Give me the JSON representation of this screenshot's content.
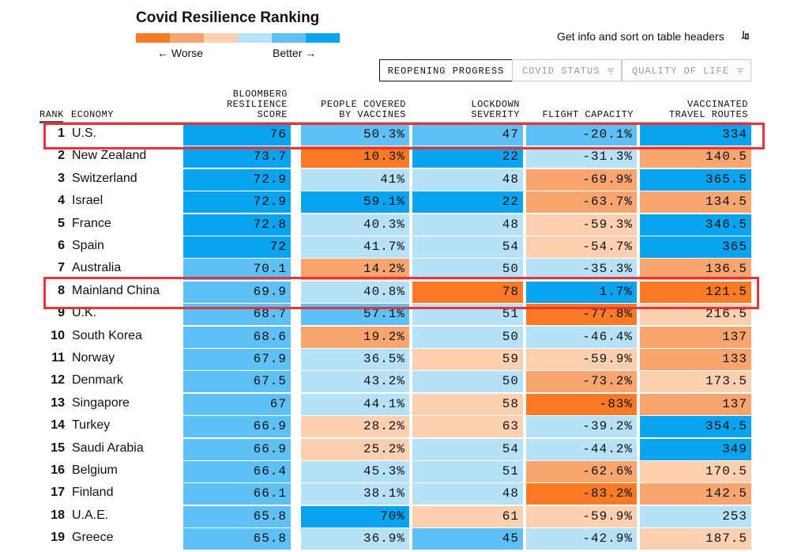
{
  "header": {
    "title": "Covid Resilience Ranking",
    "legend": {
      "colors": [
        "#fa7a26",
        "#f9a570",
        "#fdd0b2",
        "#b6e1f7",
        "#5ec0f4",
        "#0aa3f0"
      ],
      "worse": "← Worse",
      "better": "Better →"
    },
    "info": "Get info and sort on table headers"
  },
  "tabs": [
    {
      "label": "REOPENING PROGRESS",
      "active": true
    },
    {
      "label": "COVID STATUS",
      "active": false
    },
    {
      "label": "QUALITY OF LIFE",
      "active": false
    }
  ],
  "table": {
    "columns": [
      "RANK",
      "ECONOMY",
      "BLOOMBERG\nRESILIENCE\nSCORE",
      "PEOPLE COVERED\nBY VACCINES",
      "LOCKDOWN\nSEVERITY",
      "FLIGHT CAPACITY",
      "VACCINATED\nTRAVEL ROUTES"
    ],
    "rows": [
      {
        "rank": "1",
        "economy": "U.S.",
        "cells": [
          {
            "text": "76",
            "color": "#0aa3f0"
          },
          {
            "text": "50.3%",
            "color": "#5ec0f4"
          },
          {
            "text": "47",
            "color": "#5ec0f4"
          },
          {
            "text": "-20.1%",
            "color": "#5ec0f4"
          },
          {
            "text": "334",
            "color": "#0aa3f0"
          }
        ]
      },
      {
        "rank": "2",
        "economy": "New Zealand",
        "cells": [
          {
            "text": "73.7",
            "color": "#0aa3f0"
          },
          {
            "text": "10.3%",
            "color": "#fa7a26"
          },
          {
            "text": "22",
            "color": "#0aa3f0"
          },
          {
            "text": "-31.3%",
            "color": "#b6e1f7"
          },
          {
            "text": "140.5",
            "color": "#f9a570"
          }
        ]
      },
      {
        "rank": "3",
        "economy": "Switzerland",
        "cells": [
          {
            "text": "72.9",
            "color": "#0aa3f0"
          },
          {
            "text": "41%",
            "color": "#b6e1f7"
          },
          {
            "text": "48",
            "color": "#b6e1f7"
          },
          {
            "text": "-69.9%",
            "color": "#f9a570"
          },
          {
            "text": "365.5",
            "color": "#0aa3f0"
          }
        ]
      },
      {
        "rank": "4",
        "economy": "Israel",
        "cells": [
          {
            "text": "72.9",
            "color": "#0aa3f0"
          },
          {
            "text": "59.1%",
            "color": "#0aa3f0"
          },
          {
            "text": "22",
            "color": "#0aa3f0"
          },
          {
            "text": "-63.7%",
            "color": "#f9a570"
          },
          {
            "text": "134.5",
            "color": "#f9a570"
          }
        ]
      },
      {
        "rank": "5",
        "economy": "France",
        "cells": [
          {
            "text": "72.8",
            "color": "#0aa3f0"
          },
          {
            "text": "40.3%",
            "color": "#b6e1f7"
          },
          {
            "text": "48",
            "color": "#b6e1f7"
          },
          {
            "text": "-59.3%",
            "color": "#fdd0b2"
          },
          {
            "text": "346.5",
            "color": "#0aa3f0"
          }
        ]
      },
      {
        "rank": "6",
        "economy": "Spain",
        "cells": [
          {
            "text": "72",
            "color": "#0aa3f0"
          },
          {
            "text": "41.7%",
            "color": "#b6e1f7"
          },
          {
            "text": "54",
            "color": "#b6e1f7"
          },
          {
            "text": "-54.7%",
            "color": "#fdd0b2"
          },
          {
            "text": "365",
            "color": "#0aa3f0"
          }
        ]
      },
      {
        "rank": "7",
        "economy": "Australia",
        "cells": [
          {
            "text": "70.1",
            "color": "#5ec0f4"
          },
          {
            "text": "14.2%",
            "color": "#f9a570"
          },
          {
            "text": "50",
            "color": "#b6e1f7"
          },
          {
            "text": "-35.3%",
            "color": "#b6e1f7"
          },
          {
            "text": "136.5",
            "color": "#f9a570"
          }
        ]
      },
      {
        "rank": "8",
        "economy": "Mainland China",
        "cells": [
          {
            "text": "69.9",
            "color": "#5ec0f4"
          },
          {
            "text": "40.8%",
            "color": "#b6e1f7"
          },
          {
            "text": "78",
            "color": "#fa7a26"
          },
          {
            "text": "1.7%",
            "color": "#0aa3f0"
          },
          {
            "text": "121.5",
            "color": "#fa7a26"
          }
        ]
      },
      {
        "rank": "9",
        "economy": "U.K.",
        "cells": [
          {
            "text": "68.7",
            "color": "#5ec0f4"
          },
          {
            "text": "57.1%",
            "color": "#5ec0f4"
          },
          {
            "text": "51",
            "color": "#b6e1f7"
          },
          {
            "text": "-77.8%",
            "color": "#fa7a26"
          },
          {
            "text": "216.5",
            "color": "#fdd0b2"
          }
        ]
      },
      {
        "rank": "10",
        "economy": "South Korea",
        "cells": [
          {
            "text": "68.6",
            "color": "#5ec0f4"
          },
          {
            "text": "19.2%",
            "color": "#f9a570"
          },
          {
            "text": "50",
            "color": "#b6e1f7"
          },
          {
            "text": "-46.4%",
            "color": "#b6e1f7"
          },
          {
            "text": "137",
            "color": "#f9a570"
          }
        ]
      },
      {
        "rank": "11",
        "economy": "Norway",
        "cells": [
          {
            "text": "67.9",
            "color": "#5ec0f4"
          },
          {
            "text": "36.5%",
            "color": "#b6e1f7"
          },
          {
            "text": "59",
            "color": "#fdd0b2"
          },
          {
            "text": "-59.9%",
            "color": "#fdd0b2"
          },
          {
            "text": "133",
            "color": "#f9a570"
          }
        ]
      },
      {
        "rank": "12",
        "economy": "Denmark",
        "cells": [
          {
            "text": "67.5",
            "color": "#5ec0f4"
          },
          {
            "text": "43.2%",
            "color": "#b6e1f7"
          },
          {
            "text": "50",
            "color": "#b6e1f7"
          },
          {
            "text": "-73.2%",
            "color": "#f9a570"
          },
          {
            "text": "173.5",
            "color": "#fdd0b2"
          }
        ]
      },
      {
        "rank": "13",
        "economy": "Singapore",
        "cells": [
          {
            "text": "67",
            "color": "#5ec0f4"
          },
          {
            "text": "44.1%",
            "color": "#b6e1f7"
          },
          {
            "text": "58",
            "color": "#fdd0b2"
          },
          {
            "text": "-83%",
            "color": "#fa7a26"
          },
          {
            "text": "137",
            "color": "#f9a570"
          }
        ]
      },
      {
        "rank": "14",
        "economy": "Turkey",
        "cells": [
          {
            "text": "66.9",
            "color": "#5ec0f4"
          },
          {
            "text": "28.2%",
            "color": "#fdd0b2"
          },
          {
            "text": "63",
            "color": "#fdd0b2"
          },
          {
            "text": "-39.2%",
            "color": "#b6e1f7"
          },
          {
            "text": "354.5",
            "color": "#0aa3f0"
          }
        ]
      },
      {
        "rank": "15",
        "economy": "Saudi Arabia",
        "cells": [
          {
            "text": "66.9",
            "color": "#5ec0f4"
          },
          {
            "text": "25.2%",
            "color": "#fdd0b2"
          },
          {
            "text": "54",
            "color": "#b6e1f7"
          },
          {
            "text": "-44.2%",
            "color": "#b6e1f7"
          },
          {
            "text": "349",
            "color": "#0aa3f0"
          }
        ]
      },
      {
        "rank": "16",
        "economy": "Belgium",
        "cells": [
          {
            "text": "66.4",
            "color": "#5ec0f4"
          },
          {
            "text": "45.3%",
            "color": "#b6e1f7"
          },
          {
            "text": "51",
            "color": "#b6e1f7"
          },
          {
            "text": "-62.6%",
            "color": "#f9a570"
          },
          {
            "text": "170.5",
            "color": "#fdd0b2"
          }
        ]
      },
      {
        "rank": "17",
        "economy": "Finland",
        "cells": [
          {
            "text": "66.1",
            "color": "#5ec0f4"
          },
          {
            "text": "38.1%",
            "color": "#b6e1f7"
          },
          {
            "text": "48",
            "color": "#b6e1f7"
          },
          {
            "text": "-83.2%",
            "color": "#fa7a26"
          },
          {
            "text": "142.5",
            "color": "#f9a570"
          }
        ]
      },
      {
        "rank": "18",
        "economy": "U.A.E.",
        "cells": [
          {
            "text": "65.8",
            "color": "#5ec0f4"
          },
          {
            "text": "70%",
            "color": "#0aa3f0"
          },
          {
            "text": "61",
            "color": "#fdd0b2"
          },
          {
            "text": "-59.9%",
            "color": "#fdd0b2"
          },
          {
            "text": "253",
            "color": "#b6e1f7"
          }
        ]
      },
      {
        "rank": "19",
        "economy": "Greece",
        "cells": [
          {
            "text": "65.8",
            "color": "#5ec0f4"
          },
          {
            "text": "36.9%",
            "color": "#b6e1f7"
          },
          {
            "text": "45",
            "color": "#5ec0f4"
          },
          {
            "text": "-42.9%",
            "color": "#b6e1f7"
          },
          {
            "text": "187.5",
            "color": "#fdd0b2"
          }
        ]
      }
    ]
  }
}
